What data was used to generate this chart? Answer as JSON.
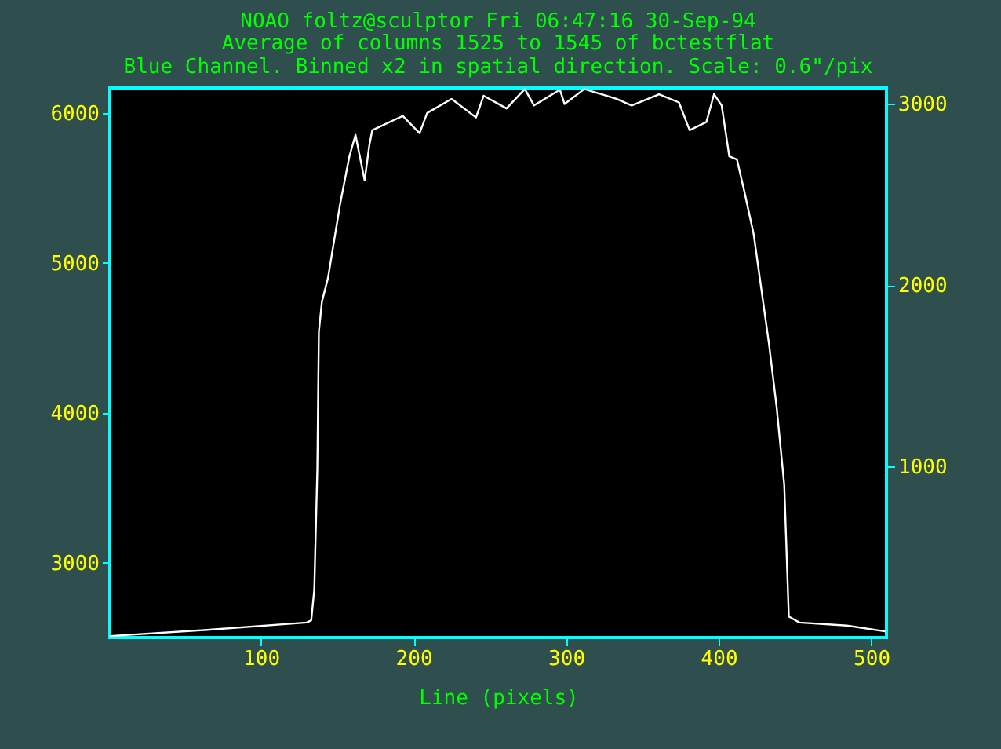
{
  "chart_data": {
    "type": "line",
    "title": "NOAO foltz@sculptor Fri 06:47:16 30-Sep-94",
    "subtitle": "Average of columns 1525 to 1545 of bctestflat",
    "annotations": [
      "Blue Channel.  Binned x2 in spatial direction.  Scale: 0.6\"/pix"
    ],
    "xlabel": "Line (pixels)",
    "xlim": [
      1,
      510
    ],
    "xticks": [
      100,
      200,
      300,
      400,
      500
    ],
    "ylim": [
      2500,
      6167
    ],
    "yticks": [
      3000,
      4000,
      5000,
      6000
    ],
    "y2lim": [
      56,
      3087
    ],
    "y2ticks": [
      1000,
      2000,
      3000
    ],
    "grid": false,
    "series": [
      {
        "color": "#ffffff",
        "x": [
          1,
          63,
          130,
          133,
          135,
          137,
          138,
          140,
          144,
          152,
          158,
          162,
          168,
          171,
          173,
          193,
          204,
          209,
          225,
          241,
          246,
          261,
          273,
          279,
          296,
          299,
          312,
          333,
          343,
          361,
          374,
          381,
          392,
          397,
          402,
          407,
          412,
          417,
          423,
          433,
          438,
          443,
          446,
          453,
          484,
          510
        ],
        "values": [
          2510,
          2550,
          2600,
          2615,
          2820,
          3625,
          4540,
          4740,
          4900,
          5396,
          5710,
          5854,
          5550,
          5780,
          5885,
          5980,
          5865,
          6000,
          6094,
          5970,
          6115,
          6030,
          6160,
          6050,
          6155,
          6060,
          6160,
          6094,
          6050,
          6125,
          6070,
          5885,
          5940,
          6125,
          6050,
          5710,
          5690,
          5470,
          5190,
          4460,
          4040,
          3520,
          2640,
          2600,
          2580,
          2540
        ]
      }
    ]
  }
}
